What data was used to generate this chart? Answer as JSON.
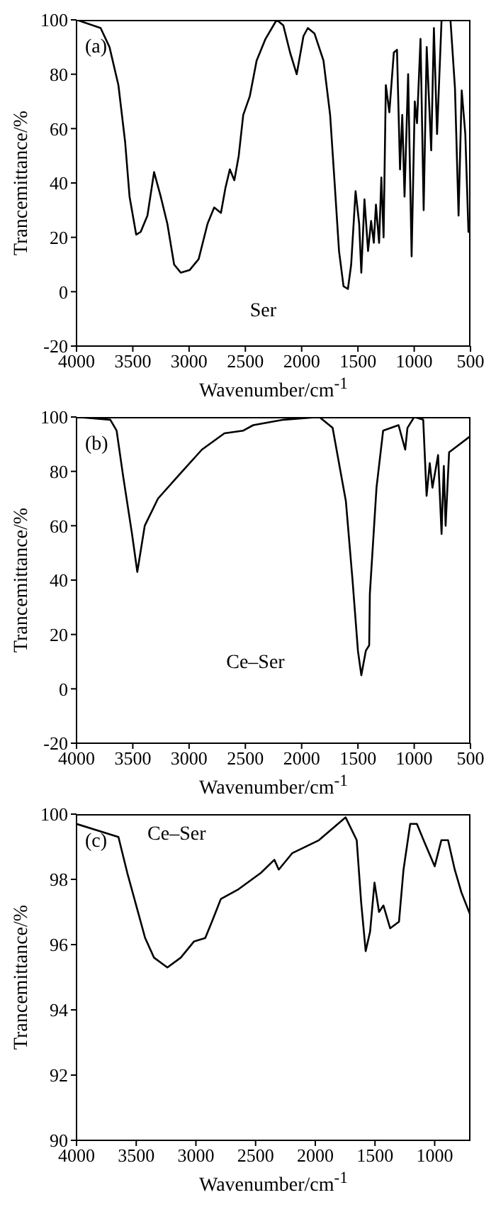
{
  "chart_data": [
    {
      "type": "line",
      "annotations": [
        "(a)"
      ],
      "xlabel": "Wavenumber/cm$^{-1}$",
      "ylabel": "Trancemittance/%",
      "xlim": [
        4000,
        500
      ],
      "xticks": [
        4000,
        3500,
        3000,
        2500,
        2000,
        1500,
        1000,
        500
      ],
      "ylim": [
        -20,
        100
      ],
      "yticks": [
        -20,
        0,
        20,
        40,
        60,
        80,
        100
      ],
      "x": [
        4000,
        3786,
        3707,
        3628,
        3568,
        3529,
        3470,
        3430,
        3370,
        3311,
        3252,
        3193,
        3133,
        3074,
        2994,
        2915,
        2836,
        2777,
        2717,
        2678,
        2638,
        2598,
        2559,
        2519,
        2460,
        2400,
        2321,
        2222,
        2163,
        2103,
        2044,
        1984,
        1945,
        1886,
        1806,
        1747,
        1707,
        1668,
        1628,
        1589,
        1560,
        1521,
        1489,
        1470,
        1442,
        1410,
        1383,
        1359,
        1340,
        1312,
        1292,
        1272,
        1252,
        1221,
        1181,
        1153,
        1126,
        1106,
        1086,
        1054,
        1023,
        995,
        975,
        944,
        916,
        889,
        849,
        825,
        797,
        757,
        678,
        638,
        606,
        578,
        546,
        518,
        500
      ],
      "series": [
        {
          "name": "Ser",
          "color": "#000000",
          "values": [
            100,
            97,
            90,
            76,
            55,
            35,
            21,
            22,
            28,
            44,
            35,
            25,
            10,
            7,
            8,
            12,
            25,
            31,
            29,
            38,
            45,
            41,
            50,
            65,
            72,
            85,
            93,
            100,
            98,
            88,
            80,
            94,
            97,
            95,
            85,
            65,
            40,
            15,
            2,
            1,
            10,
            37,
            25,
            7,
            34,
            15,
            26,
            18,
            32,
            18,
            42,
            20,
            76,
            66,
            88,
            89,
            45,
            65,
            35,
            80,
            13,
            70,
            62,
            93,
            30,
            90,
            52,
            97,
            58,
            100,
            100,
            75,
            28,
            74,
            58,
            22,
            22
          ]
        }
      ]
    },
    {
      "type": "line",
      "annotations": [
        "(b)"
      ],
      "xlabel": "Wavenumber/cm$^{-1}$",
      "ylabel": "Trancemittance/%",
      "xlim": [
        4000,
        500
      ],
      "xticks": [
        4000,
        3500,
        3000,
        2500,
        2000,
        1500,
        1000,
        500
      ],
      "ylim": [
        -20,
        100
      ],
      "yticks": [
        -20,
        0,
        20,
        40,
        60,
        80,
        100
      ],
      "x": [
        4000,
        3700,
        3644,
        3585,
        3507,
        3460,
        3394,
        3276,
        3039,
        2886,
        2686,
        2518,
        2430,
        2160,
        1843,
        1725,
        1607,
        1548,
        1500,
        1470,
        1430,
        1400,
        1394,
        1335,
        1276,
        1139,
        1080,
        1060,
        1000,
        920,
        890,
        862,
        838,
        788,
        757,
        737,
        721,
        690,
        500
      ],
      "series": [
        {
          "name": "Ce–Ser",
          "color": "#000000",
          "values": [
            100,
            99,
            95,
            78,
            57,
            43,
            60,
            70,
            81,
            88,
            94,
            95,
            97,
            99,
            100,
            96,
            69,
            40,
            14,
            5,
            14,
            16,
            35,
            74,
            95,
            97,
            88,
            96,
            100,
            99,
            71,
            83,
            74,
            86,
            57,
            82,
            60,
            87,
            93
          ]
        }
      ]
    },
    {
      "type": "line",
      "annotations": [
        "(c)"
      ],
      "xlabel": "Wavenumber/cm$^{-1}$",
      "ylabel": "Trancemittance/%",
      "xlim": [
        4000,
        700
      ],
      "xticks": [
        4000,
        3500,
        3000,
        2500,
        2000,
        1500,
        1000
      ],
      "ylim": [
        90,
        100
      ],
      "yticks": [
        90,
        92,
        94,
        96,
        98,
        100
      ],
      "x": [
        4000,
        3649,
        3575,
        3500,
        3425,
        3351,
        3239,
        3127,
        3015,
        2922,
        2866,
        2791,
        2642,
        2455,
        2343,
        2306,
        2194,
        1970,
        1746,
        1653,
        1616,
        1578,
        1541,
        1504,
        1466,
        1429,
        1373,
        1299,
        1261,
        1205,
        1149,
        1093,
        1000,
        944,
        888,
        832,
        776,
        701
      ],
      "series": [
        {
          "name": "Ce–Ser",
          "color": "#000000",
          "values": [
            99.7,
            99.3,
            98.2,
            97.2,
            96.2,
            95.6,
            95.3,
            95.6,
            96.1,
            96.2,
            96.7,
            97.4,
            97.7,
            98.2,
            98.6,
            98.3,
            98.8,
            99.2,
            99.9,
            99.2,
            97.3,
            95.8,
            96.4,
            97.9,
            97.0,
            97.2,
            96.5,
            96.7,
            98.3,
            99.7,
            99.7,
            99.2,
            98.4,
            99.2,
            99.2,
            98.3,
            97.6,
            96.9
          ]
        }
      ]
    }
  ]
}
